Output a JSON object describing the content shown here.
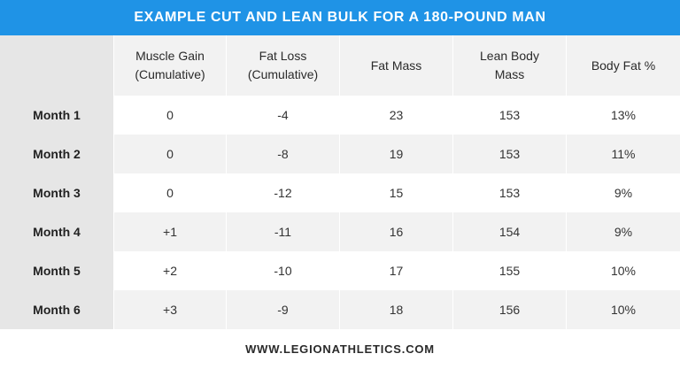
{
  "title": "EXAMPLE CUT AND LEAN BULK FOR A 180-POUND MAN",
  "colors": {
    "banner": "#1f93e6",
    "header_bg": "#f2f2f2",
    "row_label_bg": "#e6e6e6"
  },
  "table": {
    "headers": [
      {
        "line1": "",
        "line2": ""
      },
      {
        "line1": "Muscle Gain",
        "line2": "(Cumulative)"
      },
      {
        "line1": "Fat Loss",
        "line2": "(Cumulative)"
      },
      {
        "line1": "Fat Mass",
        "line2": ""
      },
      {
        "line1": "Lean Body",
        "line2": "Mass"
      },
      {
        "line1": "Body Fat %",
        "line2": ""
      }
    ],
    "rows": [
      {
        "label": "Month 1",
        "cells": [
          "0",
          "-4",
          "23",
          "153",
          "13%"
        ]
      },
      {
        "label": "Month 2",
        "cells": [
          "0",
          "-8",
          "19",
          "153",
          "11%"
        ]
      },
      {
        "label": "Month 3",
        "cells": [
          "0",
          "-12",
          "15",
          "153",
          "9%"
        ]
      },
      {
        "label": "Month 4",
        "cells": [
          "+1",
          "-11",
          "16",
          "154",
          "9%"
        ]
      },
      {
        "label": "Month 5",
        "cells": [
          "+2",
          "-10",
          "17",
          "155",
          "10%"
        ]
      },
      {
        "label": "Month 6",
        "cells": [
          "+3",
          "-9",
          "18",
          "156",
          "10%"
        ]
      }
    ]
  },
  "footer": "WWW.LEGIONATHLETICS.COM"
}
